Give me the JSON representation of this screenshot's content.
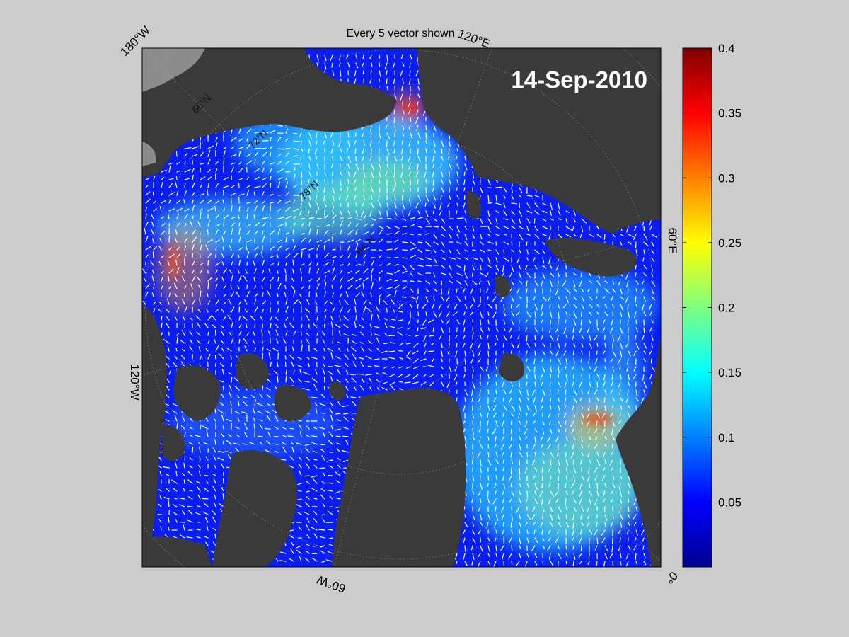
{
  "map": {
    "title": "Every 5 vector shown",
    "date": "14-Sep-2010",
    "lon_labels": [
      "180°W",
      "120°E",
      "60°E",
      "0°",
      "60°W",
      "120°W"
    ],
    "lat_labels": [
      "66°N",
      "72°N",
      "78°N",
      "84°N"
    ],
    "colors": {
      "ocean_low": "#0a1ef0",
      "land": "#3a3a3a",
      "outside": "#8c8c8c",
      "vectors": "#ffffff",
      "figure_background": "#cccccc"
    }
  },
  "colorbar": {
    "colormap": "jet",
    "min": 0,
    "max": 0.4,
    "ticks": [
      "0.4",
      "0.35",
      "0.3",
      "0.25",
      "0.2",
      "0.15",
      "0.1",
      "0.05"
    ]
  }
}
